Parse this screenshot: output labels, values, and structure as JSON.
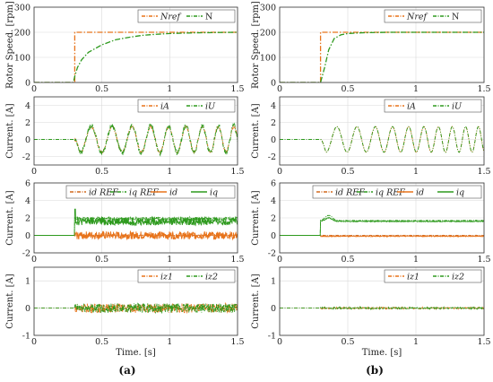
{
  "colors": {
    "orange": "#e8731a",
    "green": "#2e9a1e",
    "orange_dark": "#d2691e"
  },
  "captions": [
    "(a)",
    "(b)"
  ],
  "chart_data": [
    {
      "type": "line",
      "column": "a",
      "row": 0,
      "ylabel": "Rotor Speed. [rpm]",
      "xlabel": "",
      "xlim": [
        0,
        1.5
      ],
      "ylim": [
        0,
        300
      ],
      "xticks": [
        "0",
        "0.5",
        "1",
        "1.5"
      ],
      "yticks": [
        "0",
        "100",
        "200",
        "300"
      ],
      "series": [
        {
          "name": "Nref",
          "style": "dashdot",
          "color": "orange",
          "x": [
            0,
            0.3,
            0.3,
            1.5
          ],
          "y": [
            0,
            0,
            200,
            200
          ]
        },
        {
          "name": "N",
          "style": "dashdot",
          "color": "green",
          "x": [
            0,
            0.29,
            0.3,
            0.32,
            0.35,
            0.4,
            0.5,
            0.6,
            0.7,
            0.8,
            0.9,
            1.0,
            1.2,
            1.5
          ],
          "y": [
            0,
            0,
            25,
            60,
            90,
            120,
            150,
            170,
            180,
            188,
            192,
            195,
            198,
            200
          ]
        }
      ]
    },
    {
      "type": "line",
      "column": "a",
      "row": 1,
      "ylabel": "Current. [A]",
      "xlabel": "",
      "xlim": [
        0,
        1.5
      ],
      "ylim": [
        -3,
        5
      ],
      "xticks": [
        "0",
        "0.5",
        "1",
        "1.5"
      ],
      "yticks": [
        "-2",
        "0",
        "2",
        "4"
      ],
      "series": [
        {
          "name": "iA",
          "style": "dashdot",
          "color": "orange",
          "signal": "sine",
          "start": 0.3,
          "amp": 1.5,
          "freq_start": 6,
          "freq_end": 9,
          "noise": 0.15
        },
        {
          "name": "iU",
          "style": "dashdot",
          "color": "green",
          "signal": "sine",
          "start": 0.3,
          "amp": 1.6,
          "freq_start": 6,
          "freq_end": 9,
          "noise": 0.3
        }
      ]
    },
    {
      "type": "line",
      "column": "a",
      "row": 2,
      "ylabel": "Current. [A]",
      "xlabel": "",
      "xlim": [
        0,
        1.5
      ],
      "ylim": [
        -2,
        6
      ],
      "xticks": [
        "0",
        "0.5",
        "1",
        "1.5"
      ],
      "yticks": [
        "-2",
        "0",
        "2",
        "4",
        "6"
      ],
      "series": [
        {
          "name": "id REF",
          "style": "dashdot",
          "color": "orange_dark",
          "signal": "step",
          "start": 0.3,
          "level": 0,
          "noise": 0.05
        },
        {
          "name": "iq REF",
          "style": "dashdot",
          "color": "green",
          "signal": "step",
          "start": 0.3,
          "level": 1.9,
          "noise": 0.2
        },
        {
          "name": "id",
          "style": "solid",
          "color": "orange",
          "signal": "step",
          "start": 0.3,
          "level": 0,
          "noise": 0.45
        },
        {
          "name": "iq",
          "style": "solid",
          "color": "green",
          "signal": "step",
          "start": 0.3,
          "level": 1.6,
          "noise": 0.45,
          "spike": 3.0
        }
      ]
    },
    {
      "type": "line",
      "column": "a",
      "row": 3,
      "ylabel": "Current. [A]",
      "xlabel": "Time. [s]",
      "xlim": [
        0,
        1.5
      ],
      "ylim": [
        -1,
        1.5
      ],
      "xticks": [
        "0",
        "0.5",
        "1",
        "1.5"
      ],
      "yticks": [
        "-1",
        "0",
        "1"
      ],
      "series": [
        {
          "name": "iz1",
          "style": "dashdot",
          "color": "orange",
          "signal": "noise",
          "start": 0.3,
          "level": 0,
          "noise": 0.17
        },
        {
          "name": "iz2",
          "style": "dashdot",
          "color": "green",
          "signal": "noise",
          "start": 0.3,
          "level": 0,
          "noise": 0.17
        }
      ]
    },
    {
      "type": "line",
      "column": "b",
      "row": 0,
      "ylabel": "Rotor Speed. [rpm]",
      "xlabel": "",
      "xlim": [
        0,
        1.5
      ],
      "ylim": [
        0,
        300
      ],
      "xticks": [
        "0",
        "0.5",
        "1",
        "1.5"
      ],
      "yticks": [
        "0",
        "100",
        "200",
        "300"
      ],
      "series": [
        {
          "name": "Nref",
          "style": "dashdot",
          "color": "orange",
          "x": [
            0,
            0.3,
            0.3,
            1.5
          ],
          "y": [
            0,
            0,
            200,
            200
          ]
        },
        {
          "name": "N",
          "style": "dashdot",
          "color": "green",
          "x": [
            0,
            0.3,
            0.33,
            0.36,
            0.4,
            0.45,
            0.5,
            0.6,
            0.8,
            1.0,
            1.5
          ],
          "y": [
            0,
            0,
            60,
            130,
            175,
            190,
            195,
            198,
            200,
            200,
            200
          ]
        }
      ]
    },
    {
      "type": "line",
      "column": "b",
      "row": 1,
      "ylabel": "Current. [A]",
      "xlabel": "",
      "xlim": [
        0,
        1.5
      ],
      "ylim": [
        -3,
        5
      ],
      "xticks": [
        "0",
        "0.5",
        "1",
        "1.5"
      ],
      "yticks": [
        "-2",
        "0",
        "2",
        "4"
      ],
      "series": [
        {
          "name": "iA",
          "style": "dashdot",
          "color": "orange",
          "signal": "sine",
          "start": 0.3,
          "amp": 1.5,
          "freq_start": 6,
          "freq_end": 11,
          "noise": 0.02
        },
        {
          "name": "iU",
          "style": "dashdot",
          "color": "green",
          "signal": "sine",
          "start": 0.3,
          "amp": 1.5,
          "freq_start": 6,
          "freq_end": 11,
          "noise": 0.03
        }
      ]
    },
    {
      "type": "line",
      "column": "b",
      "row": 2,
      "ylabel": "Current. [A]",
      "xlabel": "",
      "xlim": [
        0,
        1.5
      ],
      "ylim": [
        -2,
        6
      ],
      "xticks": [
        "0",
        "0.5",
        "1",
        "1.5"
      ],
      "yticks": [
        "-2",
        "0",
        "2",
        "4",
        "6"
      ],
      "series": [
        {
          "name": "id REF",
          "style": "dashdot",
          "color": "orange_dark",
          "signal": "step",
          "start": 0.3,
          "level": 0,
          "noise": 0.02
        },
        {
          "name": "iq REF",
          "style": "dashdot",
          "color": "green",
          "signal": "step",
          "start": 0.3,
          "level": 1.7,
          "noise": 0.03,
          "bump": 2.3
        },
        {
          "name": "id",
          "style": "solid",
          "color": "orange",
          "signal": "step",
          "start": 0.3,
          "level": -0.1,
          "noise": 0.05
        },
        {
          "name": "iq",
          "style": "solid",
          "color": "green",
          "signal": "step",
          "start": 0.3,
          "level": 1.6,
          "noise": 0.05,
          "bump": 2.0
        }
      ]
    },
    {
      "type": "line",
      "column": "b",
      "row": 3,
      "ylabel": "Current. [A]",
      "xlabel": "Time. [s]",
      "xlim": [
        0,
        1.5
      ],
      "ylim": [
        -1,
        1.5
      ],
      "xticks": [
        "0",
        "0.5",
        "1",
        "1.5"
      ],
      "yticks": [
        "-1",
        "0",
        "1"
      ],
      "series": [
        {
          "name": "iz1",
          "style": "dashdot",
          "color": "orange",
          "signal": "noise",
          "start": 0.3,
          "level": 0,
          "noise": 0.03
        },
        {
          "name": "iz2",
          "style": "dashdot",
          "color": "green",
          "signal": "noise",
          "start": 0.3,
          "level": 0,
          "noise": 0.03
        }
      ]
    }
  ]
}
